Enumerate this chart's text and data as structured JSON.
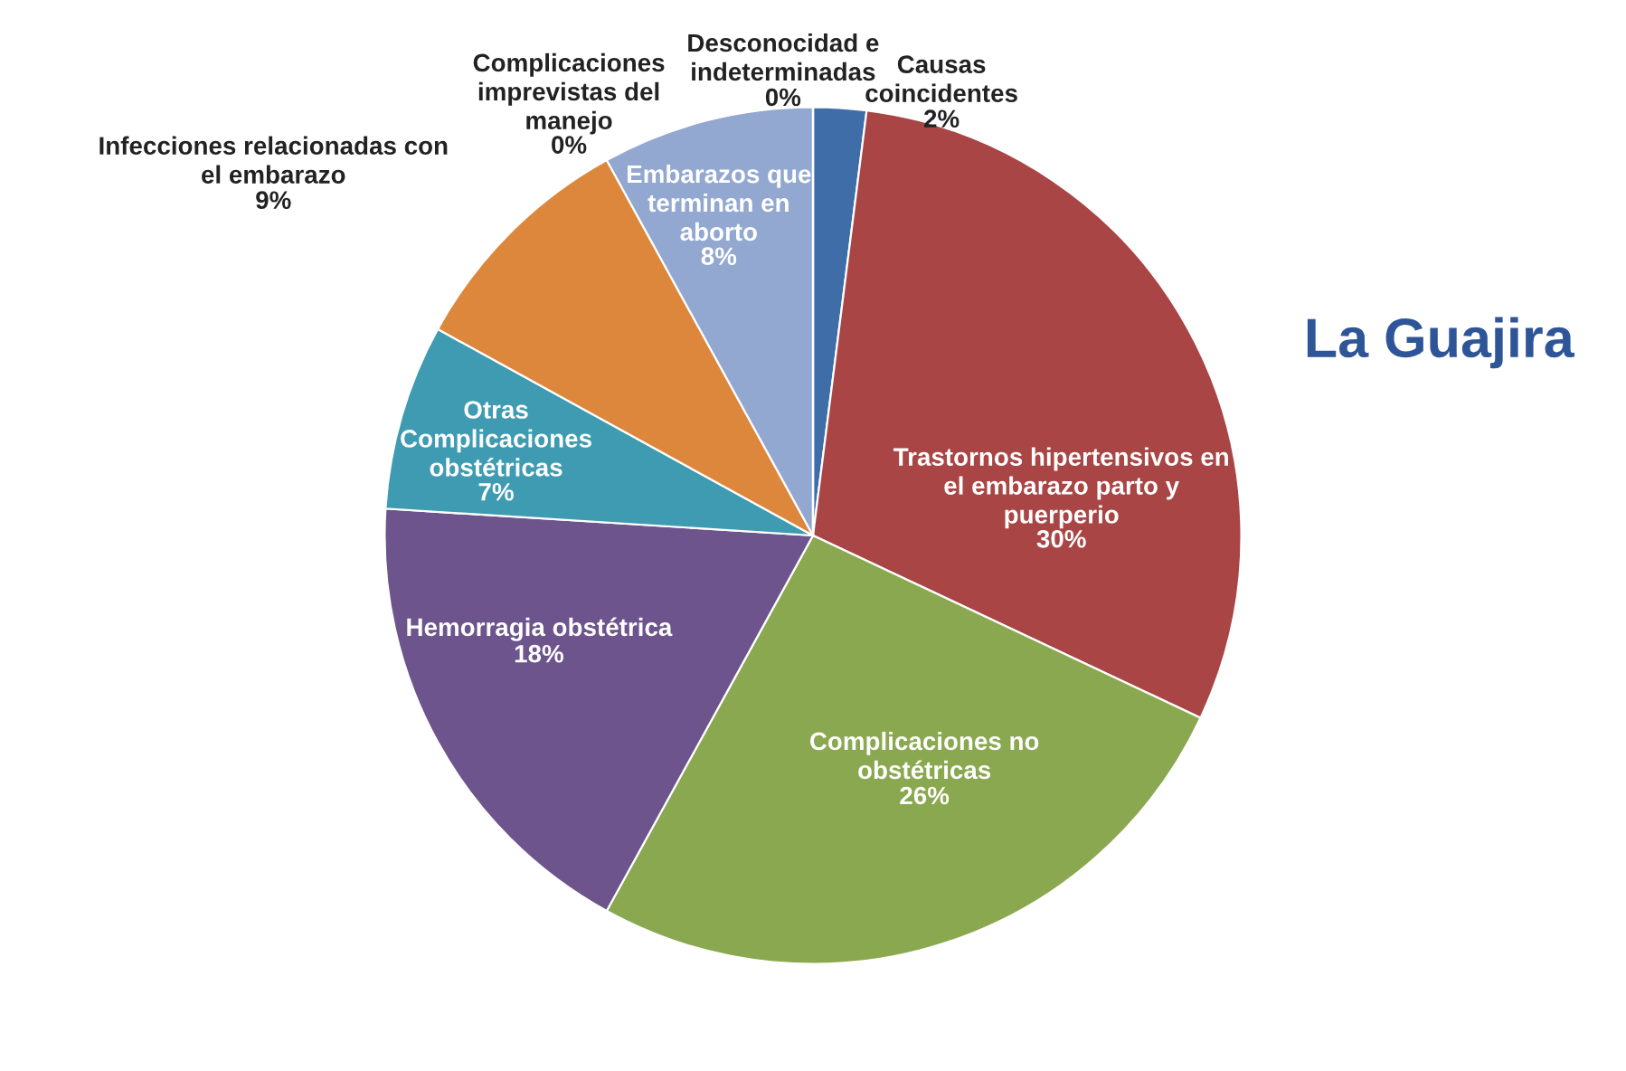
{
  "chart_data": {
    "type": "pie",
    "title": "La Guajira",
    "value_labels": [
      "2%",
      "30%",
      "26%",
      "18%",
      "7%",
      "9%",
      "8%",
      "0%",
      "0%"
    ],
    "categories": [
      "Causas\ncoincidentes",
      "Trastornos hipertensivos en\nel embarazo parto y\npuerperio",
      "Complicaciones no\nobstétricas",
      "Hemorragia obstétrica",
      "Otras\nComplicaciones\nobstétricas",
      "Infecciones relacionadas con\nel embarazo",
      "Embarazos que\nterminan en\naborto",
      "Complicaciones\nimprevistas del\nmanejo",
      "Desconocidad e\nindeterminadas"
    ],
    "values": [
      2,
      30,
      26,
      18,
      7,
      9,
      8,
      0,
      0
    ],
    "colors": [
      "#3e6da8",
      "#a94545",
      "#8aa84f",
      "#6d548d",
      "#3f9bb1",
      "#dd873d",
      "#93a8d0",
      "#c0504d",
      "#4f81bd"
    ]
  }
}
